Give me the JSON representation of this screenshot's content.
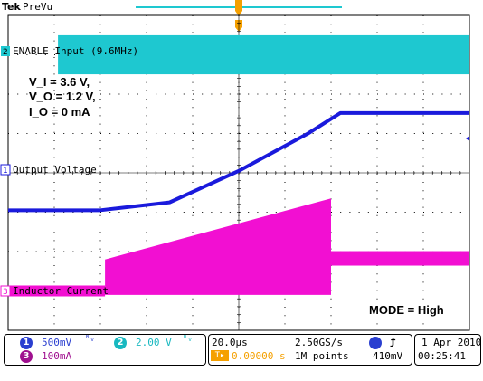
{
  "header": {
    "brand": "Tek",
    "mode": "PreVu"
  },
  "chart_data": {
    "type": "line",
    "x_unit": "µs",
    "time_per_div": 20,
    "series": [
      {
        "name": "ENABLE Input (9.6MHz)",
        "channel": 2,
        "color": "#1ec8d0",
        "shape": "band",
        "level_divs_from_top": [
          0.55,
          1.45
        ]
      },
      {
        "name": "Output Voltage",
        "channel": 1,
        "color": "#1a1adc",
        "points_divs": [
          [
            0,
            4.95
          ],
          [
            2.0,
            4.95
          ],
          [
            3.5,
            4.75
          ],
          [
            5.0,
            3.95
          ],
          [
            6.5,
            3.0
          ],
          [
            7.2,
            2.48
          ],
          [
            10,
            2.48
          ]
        ]
      },
      {
        "name": "Inductor Current",
        "channel": 3,
        "color": "#f20fd2",
        "points_divs": [
          [
            2.1,
            7.0
          ],
          [
            2.1,
            6.2
          ],
          [
            7.0,
            4.65
          ],
          [
            7.0,
            6.15
          ],
          [
            10,
            6.15
          ]
        ],
        "baseline_divs": 7.0
      }
    ],
    "conditions": [
      "V_I = 3.6 V,",
      "V_O = 1.2 V,",
      "I_O = 0 mA"
    ],
    "mode_label": "MODE = High"
  },
  "status": {
    "ch1": {
      "num": "1",
      "scale": "500mV",
      "color": "#2a3fd0"
    },
    "ch2": {
      "num": "2",
      "scale": "2.00 V",
      "color": "#18b8c0"
    },
    "ch3": {
      "num": "3",
      "scale": "100mA",
      "color": "#a0108f"
    },
    "horiz": "20.0µs",
    "rate": "2.50GS/s",
    "delay": "0.00000 s",
    "points": "1M points",
    "trigger_level": "410mV",
    "trigger_glyph": "ƒ",
    "date": "1 Apr 2010",
    "time": "00:25:41"
  }
}
